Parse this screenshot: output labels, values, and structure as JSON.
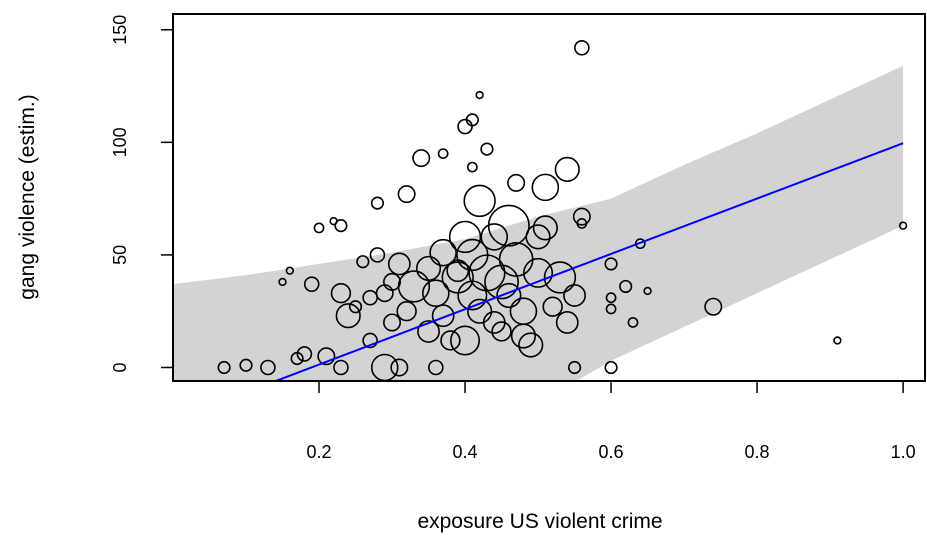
{
  "chart_data": {
    "type": "scatter",
    "xlabel": "exposure US violent crime",
    "ylabel": "gang violence (estim.)",
    "xlim": [
      0.0,
      1.03
    ],
    "ylim": [
      -6,
      157
    ],
    "x_ticks": [
      0.2,
      0.4,
      0.6,
      0.8,
      1.0
    ],
    "x_tick_labels": [
      "0.2",
      "0.4",
      "0.6",
      "0.8",
      "1.0"
    ],
    "y_ticks": [
      0,
      50,
      100,
      150
    ],
    "y_tick_labels": [
      "0",
      "50",
      "100",
      "150"
    ],
    "grid": false,
    "legend": "none",
    "colors": {
      "points": "#000000",
      "fit_line": "#0000ff",
      "band": "#d3d3d3"
    },
    "fit_line": {
      "x": [
        0.0,
        1.0
      ],
      "y": [
        -23.3,
        99.6
      ]
    },
    "confidence_band": {
      "x": [
        0.0,
        0.1,
        0.2,
        0.3,
        0.4,
        0.5,
        0.6,
        0.7,
        0.8,
        0.9,
        1.0
      ],
      "lower": [
        -73,
        -63,
        -53,
        -43,
        -33,
        -16,
        3,
        18,
        33,
        48,
        63
      ],
      "upper": [
        37,
        41,
        46,
        51,
        57,
        67,
        75,
        90,
        104,
        119,
        134
      ]
    },
    "points": [
      {
        "x": 0.07,
        "y": 0,
        "size": 4
      },
      {
        "x": 0.1,
        "y": 1,
        "size": 4
      },
      {
        "x": 0.13,
        "y": 0,
        "size": 5
      },
      {
        "x": 0.15,
        "y": 38,
        "size": 2
      },
      {
        "x": 0.16,
        "y": 43,
        "size": 2
      },
      {
        "x": 0.17,
        "y": 4,
        "size": 4
      },
      {
        "x": 0.18,
        "y": 6,
        "size": 5
      },
      {
        "x": 0.19,
        "y": 37,
        "size": 5
      },
      {
        "x": 0.2,
        "y": 62,
        "size": 3
      },
      {
        "x": 0.21,
        "y": 5,
        "size": 6
      },
      {
        "x": 0.22,
        "y": 65,
        "size": 2
      },
      {
        "x": 0.23,
        "y": 0,
        "size": 5
      },
      {
        "x": 0.23,
        "y": 33,
        "size": 7
      },
      {
        "x": 0.23,
        "y": 63,
        "size": 4
      },
      {
        "x": 0.24,
        "y": 23,
        "size": 9
      },
      {
        "x": 0.25,
        "y": 27,
        "size": 4
      },
      {
        "x": 0.26,
        "y": 47,
        "size": 4
      },
      {
        "x": 0.27,
        "y": 31,
        "size": 5
      },
      {
        "x": 0.27,
        "y": 12,
        "size": 5
      },
      {
        "x": 0.28,
        "y": 50,
        "size": 5
      },
      {
        "x": 0.28,
        "y": 73,
        "size": 4
      },
      {
        "x": 0.29,
        "y": 0,
        "size": 10
      },
      {
        "x": 0.29,
        "y": 33,
        "size": 6
      },
      {
        "x": 0.3,
        "y": 20,
        "size": 6
      },
      {
        "x": 0.3,
        "y": 38,
        "size": 6
      },
      {
        "x": 0.31,
        "y": 46,
        "size": 8
      },
      {
        "x": 0.31,
        "y": 0,
        "size": 6
      },
      {
        "x": 0.32,
        "y": 77,
        "size": 6
      },
      {
        "x": 0.32,
        "y": 25,
        "size": 7
      },
      {
        "x": 0.33,
        "y": 36,
        "size": 12
      },
      {
        "x": 0.34,
        "y": 93,
        "size": 6
      },
      {
        "x": 0.35,
        "y": 16,
        "size": 8
      },
      {
        "x": 0.35,
        "y": 44,
        "size": 9
      },
      {
        "x": 0.36,
        "y": 33,
        "size": 10
      },
      {
        "x": 0.36,
        "y": 0,
        "size": 5
      },
      {
        "x": 0.37,
        "y": 23,
        "size": 8
      },
      {
        "x": 0.37,
        "y": 51,
        "size": 10
      },
      {
        "x": 0.37,
        "y": 95,
        "size": 3
      },
      {
        "x": 0.38,
        "y": 12,
        "size": 7
      },
      {
        "x": 0.39,
        "y": 43,
        "size": 8
      },
      {
        "x": 0.39,
        "y": 40,
        "size": 12
      },
      {
        "x": 0.4,
        "y": 58,
        "size": 12
      },
      {
        "x": 0.4,
        "y": 107,
        "size": 5
      },
      {
        "x": 0.4,
        "y": 12,
        "size": 11
      },
      {
        "x": 0.41,
        "y": 32,
        "size": 11
      },
      {
        "x": 0.41,
        "y": 50,
        "size": 12
      },
      {
        "x": 0.41,
        "y": 110,
        "size": 4
      },
      {
        "x": 0.41,
        "y": 89,
        "size": 3
      },
      {
        "x": 0.42,
        "y": 121,
        "size": 2
      },
      {
        "x": 0.42,
        "y": 25,
        "size": 9
      },
      {
        "x": 0.42,
        "y": 74,
        "size": 12
      },
      {
        "x": 0.43,
        "y": 42,
        "size": 14
      },
      {
        "x": 0.43,
        "y": 97,
        "size": 4
      },
      {
        "x": 0.44,
        "y": 58,
        "size": 10
      },
      {
        "x": 0.44,
        "y": 20,
        "size": 8
      },
      {
        "x": 0.45,
        "y": 38,
        "size": 13
      },
      {
        "x": 0.45,
        "y": 16,
        "size": 7
      },
      {
        "x": 0.46,
        "y": 63,
        "size": 16
      },
      {
        "x": 0.46,
        "y": 32,
        "size": 9
      },
      {
        "x": 0.47,
        "y": 48,
        "size": 13
      },
      {
        "x": 0.47,
        "y": 82,
        "size": 6
      },
      {
        "x": 0.48,
        "y": 25,
        "size": 10
      },
      {
        "x": 0.48,
        "y": 14,
        "size": 9
      },
      {
        "x": 0.49,
        "y": 10,
        "size": 9
      },
      {
        "x": 0.5,
        "y": 42,
        "size": 11
      },
      {
        "x": 0.5,
        "y": 58,
        "size": 9
      },
      {
        "x": 0.51,
        "y": 80,
        "size": 10
      },
      {
        "x": 0.51,
        "y": 62,
        "size": 9
      },
      {
        "x": 0.52,
        "y": 27,
        "size": 7
      },
      {
        "x": 0.53,
        "y": 40,
        "size": 12
      },
      {
        "x": 0.54,
        "y": 88,
        "size": 9
      },
      {
        "x": 0.54,
        "y": 20,
        "size": 8
      },
      {
        "x": 0.55,
        "y": 32,
        "size": 8
      },
      {
        "x": 0.55,
        "y": 0,
        "size": 4
      },
      {
        "x": 0.56,
        "y": 64,
        "size": 3
      },
      {
        "x": 0.56,
        "y": 67,
        "size": 6
      },
      {
        "x": 0.56,
        "y": 142,
        "size": 5
      },
      {
        "x": 0.6,
        "y": 46,
        "size": 4
      },
      {
        "x": 0.6,
        "y": 31,
        "size": 3
      },
      {
        "x": 0.6,
        "y": 26,
        "size": 3
      },
      {
        "x": 0.6,
        "y": 0,
        "size": 4
      },
      {
        "x": 0.62,
        "y": 36,
        "size": 4
      },
      {
        "x": 0.63,
        "y": 20,
        "size": 3
      },
      {
        "x": 0.64,
        "y": 55,
        "size": 3
      },
      {
        "x": 0.65,
        "y": 34,
        "size": 2
      },
      {
        "x": 0.74,
        "y": 27,
        "size": 6
      },
      {
        "x": 0.91,
        "y": 12,
        "size": 2
      },
      {
        "x": 1.0,
        "y": 63,
        "size": 2
      }
    ]
  }
}
